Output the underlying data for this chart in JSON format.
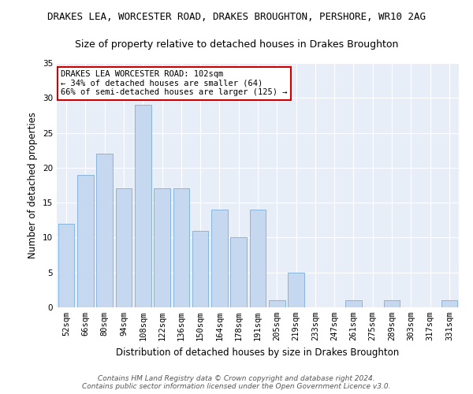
{
  "title": "DRAKES LEA, WORCESTER ROAD, DRAKES BROUGHTON, PERSHORE, WR10 2AG",
  "subtitle": "Size of property relative to detached houses in Drakes Broughton",
  "xlabel": "Distribution of detached houses by size in Drakes Broughton",
  "ylabel": "Number of detached properties",
  "footer_line1": "Contains HM Land Registry data © Crown copyright and database right 2024.",
  "footer_line2": "Contains public sector information licensed under the Open Government Licence v3.0.",
  "annotation_lines": [
    "DRAKES LEA WORCESTER ROAD: 102sqm",
    "← 34% of detached houses are smaller (64)",
    "66% of semi-detached houses are larger (125) →"
  ],
  "bins": [
    "52sqm",
    "66sqm",
    "80sqm",
    "94sqm",
    "108sqm",
    "122sqm",
    "136sqm",
    "150sqm",
    "164sqm",
    "178sqm",
    "191sqm",
    "205sqm",
    "219sqm",
    "233sqm",
    "247sqm",
    "261sqm",
    "275sqm",
    "289sqm",
    "303sqm",
    "317sqm",
    "331sqm"
  ],
  "values": [
    12,
    19,
    22,
    17,
    29,
    17,
    17,
    11,
    14,
    10,
    14,
    1,
    5,
    0,
    0,
    1,
    0,
    1,
    0,
    0,
    1
  ],
  "bar_color": "#c5d8f0",
  "bar_edge_color": "#7aaed6",
  "ylim": [
    0,
    35
  ],
  "yticks": [
    0,
    5,
    10,
    15,
    20,
    25,
    30,
    35
  ],
  "background_color": "#e8eef8",
  "grid_color": "#ffffff",
  "annotation_box_color": "#ffffff",
  "annotation_box_edge_color": "#cc0000",
  "title_fontsize": 9,
  "subtitle_fontsize": 9,
  "axis_label_fontsize": 8.5,
  "tick_fontsize": 7.5,
  "annotation_fontsize": 7.5,
  "footer_fontsize": 6.5
}
